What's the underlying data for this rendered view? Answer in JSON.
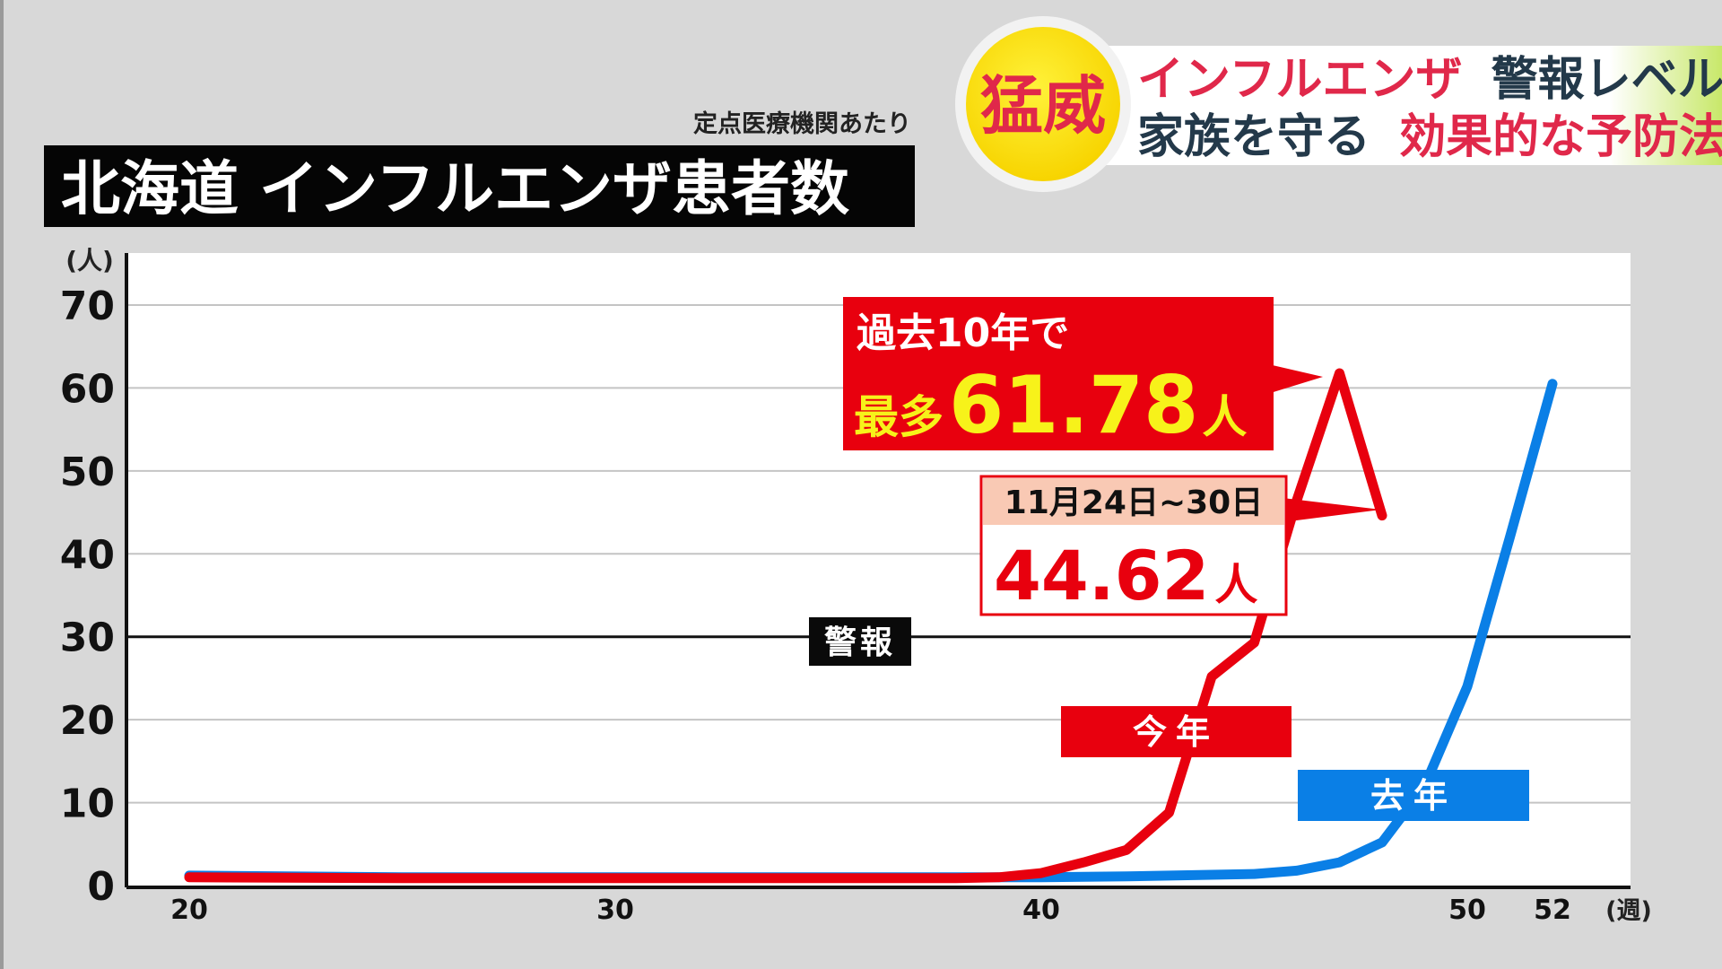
{
  "header": {
    "title": "北海道 インフルエンザ患者数",
    "subtitle": "定点医療機関あたり"
  },
  "banner": {
    "badge": "猛威",
    "line1_red": "インフルエンザ",
    "line1_dark": "警報レベル",
    "line2_dark": "家族を守る",
    "line2_red": "効果的な予防法"
  },
  "annotations": {
    "max_prefix": "過去10年で",
    "max_label": "最多",
    "max_value": "61.78",
    "max_unit": "人",
    "latest_period": "11月24日~30日",
    "latest_value": "44.62",
    "latest_unit": "人",
    "alert_label": "警報"
  },
  "colors": {
    "this_year": "#e8000e",
    "last_year": "#0a7fe6",
    "highlight": "#f7f21a",
    "banner_red": "#e0284a",
    "banner_dark": "#23394a"
  },
  "chart_data": {
    "type": "line",
    "title": "北海道 インフルエンザ患者数",
    "subtitle": "定点医療機関あたり",
    "xlabel": "(週)",
    "ylabel": "(人)",
    "xlim": [
      20,
      52
    ],
    "ylim": [
      0,
      70
    ],
    "x_ticks": [
      "20",
      "30",
      "40",
      "50",
      "52"
    ],
    "y_ticks": [
      "0",
      "10",
      "20",
      "30",
      "40",
      "50",
      "60",
      "70"
    ],
    "grid": true,
    "reference_line": {
      "value": 30,
      "label": "警報"
    },
    "series": [
      {
        "name": "今年",
        "color": "#e8000e",
        "points": [
          [
            20,
            1.0
          ],
          [
            25,
            0.9
          ],
          [
            30,
            0.9
          ],
          [
            35,
            0.9
          ],
          [
            38,
            0.9
          ],
          [
            39,
            1.0
          ],
          [
            40,
            1.5
          ],
          [
            41,
            2.8
          ],
          [
            42,
            4.3
          ],
          [
            43,
            8.8
          ],
          [
            44,
            25.2
          ],
          [
            45,
            29.3
          ],
          [
            46,
            46.5
          ],
          [
            47,
            61.78
          ],
          [
            48,
            44.62
          ]
        ]
      },
      {
        "name": "去年",
        "color": "#0a7fe6",
        "points": [
          [
            20,
            1.2
          ],
          [
            25,
            1.0
          ],
          [
            30,
            1.0
          ],
          [
            35,
            1.0
          ],
          [
            40,
            1.0
          ],
          [
            42,
            1.1
          ],
          [
            44,
            1.3
          ],
          [
            45,
            1.4
          ],
          [
            46,
            1.8
          ],
          [
            47,
            2.8
          ],
          [
            48,
            5.2
          ],
          [
            49,
            12.0
          ],
          [
            50,
            24.0
          ],
          [
            51,
            42.0
          ],
          [
            52,
            60.5
          ]
        ]
      }
    ]
  }
}
